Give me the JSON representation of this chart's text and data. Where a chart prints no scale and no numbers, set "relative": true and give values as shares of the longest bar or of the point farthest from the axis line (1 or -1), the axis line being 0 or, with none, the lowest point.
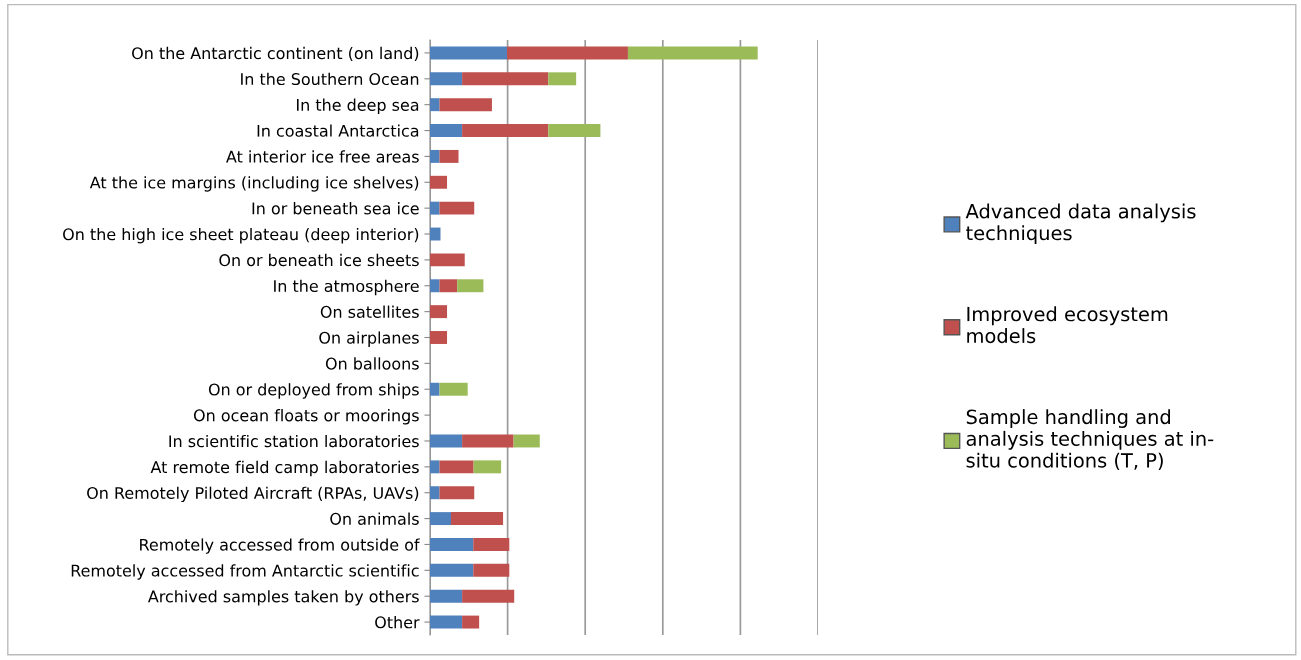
{
  "chart_data": {
    "type": "bar",
    "orientation": "horizontal",
    "stacked": true,
    "relative": true,
    "grid": "x",
    "legend": "right",
    "categories": [
      "On the Antarctic continent (on land)",
      "In the Southern Ocean",
      "In the deep sea",
      "In coastal Antarctica",
      "At interior ice free areas",
      "At the ice margins (including ice shelves)",
      "In or beneath sea ice",
      "On the high ice sheet plateau (deep interior)",
      "On or beneath ice sheets",
      "In the atmosphere",
      "On satellites",
      "On airplanes",
      "On balloons",
      "On or deployed from ships",
      "On ocean floats or moorings",
      "In scientific station laboratories",
      "At remote field camp laboratories",
      "On Remotely Piloted Aircraft (RPAs, UAVs)",
      "On animals",
      "Remotely accessed from outside of",
      "Remotely accessed from Antarctic scientific",
      "Archived samples taken by others",
      "Other"
    ],
    "series": [
      {
        "name": "Advanced data analysis\ntechniques",
        "color": "#4f81bd",
        "values": [
          0.235,
          0.098,
          0.029,
          0.098,
          0.029,
          0,
          0.029,
          0.032,
          0,
          0.029,
          0,
          0,
          0,
          0.029,
          0,
          0.098,
          0.029,
          0.029,
          0.064,
          0.132,
          0.132,
          0.098,
          0.098
        ]
      },
      {
        "name": "Improved ecosystem\nmodels",
        "color": "#c0504d",
        "values": [
          0.369,
          0.263,
          0.16,
          0.263,
          0.058,
          0.052,
          0.106,
          0,
          0.106,
          0.054,
          0.052,
          0.052,
          0,
          0,
          0,
          0.157,
          0.104,
          0.106,
          0.159,
          0.11,
          0.11,
          0.159,
          0.052
        ]
      },
      {
        "name": "Sample handling and\nanalysis techniques at in-\nsitu conditions (T, P)",
        "color": "#9bbb59",
        "values": [
          0.396,
          0.085,
          0,
          0.159,
          0,
          0,
          0,
          0,
          0,
          0.08,
          0,
          0,
          0,
          0.086,
          0,
          0.08,
          0.084,
          0,
          0,
          0,
          0,
          0,
          0
        ]
      }
    ]
  }
}
